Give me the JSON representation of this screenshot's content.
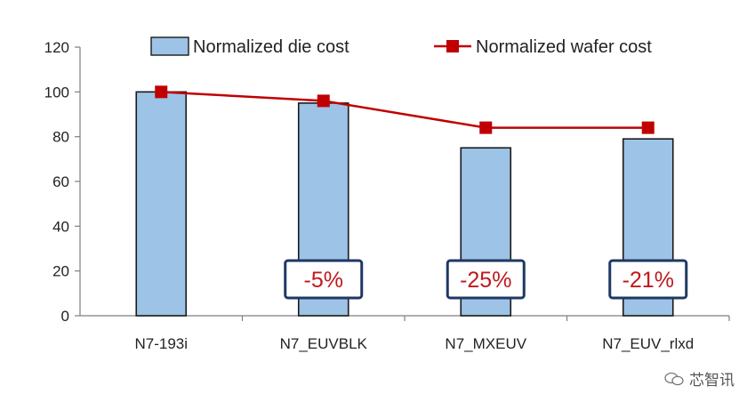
{
  "chart_data": {
    "type": "bar",
    "categories": [
      "N7-193i",
      "N7_EUVBLK",
      "N7_MXEUV",
      "N7_EUV_rlxd"
    ],
    "series": [
      {
        "name": "Normalized die cost",
        "kind": "bar",
        "values": [
          100,
          95,
          75,
          79
        ],
        "color": "#9dc3e6"
      },
      {
        "name": "Normalized wafer cost",
        "kind": "line",
        "values": [
          100,
          96,
          84,
          84
        ],
        "color": "#c00000"
      }
    ],
    "ylim": [
      0,
      120
    ],
    "yticks": [
      "0",
      "20",
      "40",
      "60",
      "80",
      "100",
      "120"
    ],
    "annotations": [
      {
        "category": "N7_EUVBLK",
        "text": "-5%"
      },
      {
        "category": "N7_MXEUV",
        "text": "-25%"
      },
      {
        "category": "N7_EUV_rlxd",
        "text": "-21%"
      }
    ],
    "legend_position": "top",
    "grid": false
  },
  "watermark": {
    "text": "芯智讯",
    "icon": "wechat-icon"
  },
  "colors": {
    "bar_fill": "#9dc3e6",
    "bar_stroke": "#1a1a1a",
    "line": "#c00000",
    "callout_border": "#1f3864",
    "callout_text": "#c0191c"
  }
}
